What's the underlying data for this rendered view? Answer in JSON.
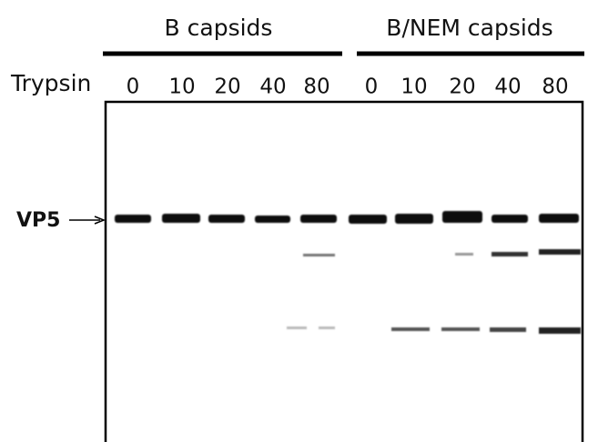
{
  "groups": [
    "B capsids",
    "B/NEM capsids"
  ],
  "row_label": "Trypsin",
  "lanes": [
    "0",
    "10",
    "20",
    "40",
    "80",
    "0",
    "10",
    "20",
    "40",
    "80"
  ],
  "band_label": "VP5"
}
